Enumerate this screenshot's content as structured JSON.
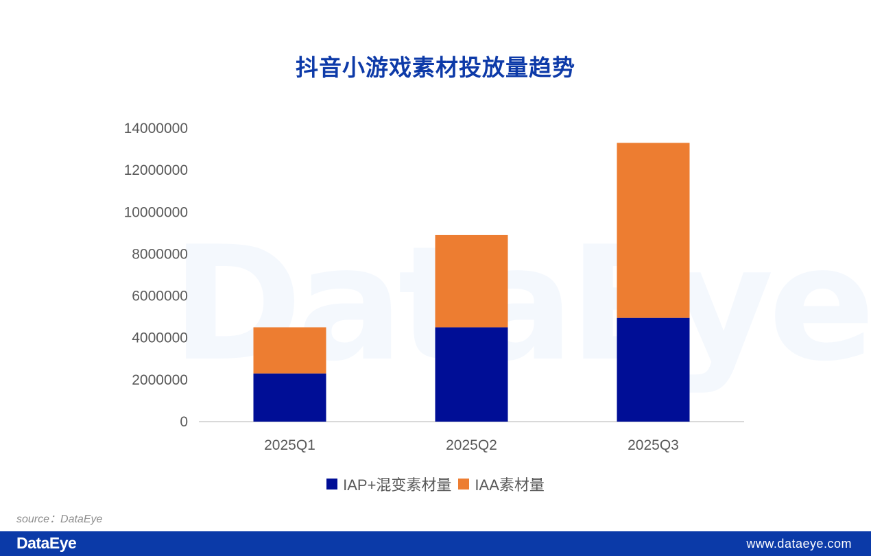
{
  "title": "抖音小游戏素材投放量趋势",
  "watermark": "DataEye",
  "source": "source：DataEye",
  "footer": {
    "brand": "DataEye",
    "url": "www.dataeye.com"
  },
  "colors": {
    "iap": "#000e96",
    "iaa": "#ed7d31",
    "title": "#0d3aa8",
    "footer": "#0b3aa8"
  },
  "chart_data": {
    "type": "bar",
    "stacked": true,
    "categories": [
      "2025Q1",
      "2025Q2",
      "2025Q3"
    ],
    "series": [
      {
        "name": "IAP+混变素材量",
        "values": [
          2300000,
          4500000,
          4950000
        ]
      },
      {
        "name": "IAA素材量",
        "values": [
          2200000,
          4400000,
          8350000
        ]
      }
    ],
    "yticks": [
      "0",
      "2000000",
      "4000000",
      "6000000",
      "8000000",
      "10000000",
      "12000000",
      "14000000"
    ],
    "ylim": [
      0,
      14000000
    ],
    "grid": false,
    "legend": "bottom",
    "xlabel": "",
    "ylabel": ""
  }
}
